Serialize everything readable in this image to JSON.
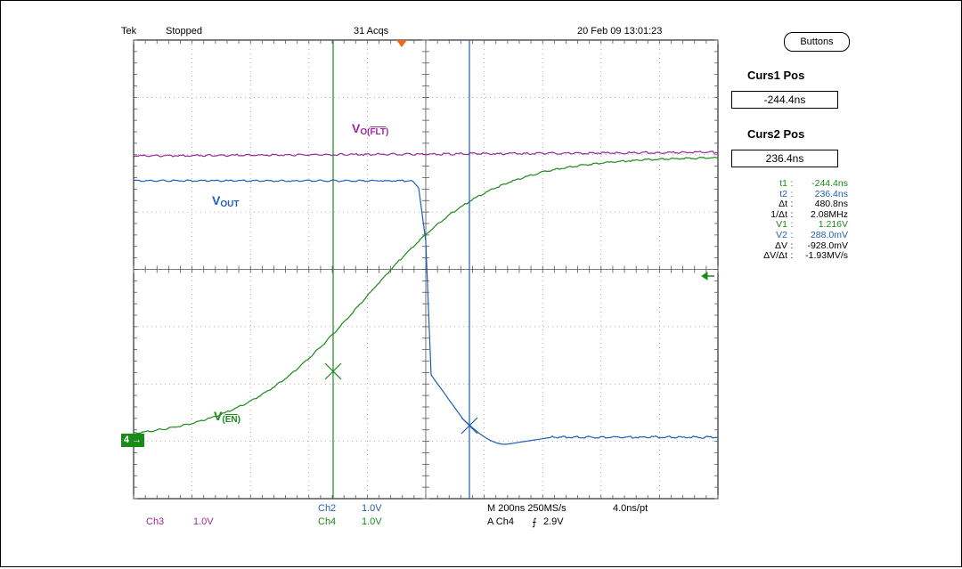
{
  "header": {
    "brand": "Tek",
    "state": "Stopped",
    "acqs": "31 Acqs",
    "datetime": "20 Feb 09 13:01:23"
  },
  "buttons_label": "Buttons",
  "cursors": {
    "curs1_title": "Curs1 Pos",
    "curs1_value": "-244.4ns",
    "curs2_title": "Curs2 Pos",
    "curs2_value": "236.4ns"
  },
  "readouts": [
    {
      "label": "t1",
      "value": "-244.4ns",
      "color": "#1a8a1a"
    },
    {
      "label": "t2",
      "value": "236.4ns",
      "color": "#1f5fb0"
    },
    {
      "label": "Δt",
      "value": "480.8ns",
      "color": "#000000"
    },
    {
      "label": "1/Δt",
      "value": "2.08MHz",
      "color": "#000000"
    },
    {
      "label": "V1",
      "value": "1.216V",
      "color": "#1a8a1a"
    },
    {
      "label": "V2",
      "value": "288.0mV",
      "color": "#1f5fb0"
    },
    {
      "label": "ΔV",
      "value": "-928.0mV",
      "color": "#000000"
    },
    {
      "label": "ΔV/Δt",
      "value": "-1.93MV/s",
      "color": "#000000"
    }
  ],
  "trace_labels": {
    "vo_main": "V",
    "vo_sub": "O(",
    "vo_bar": "FLT",
    "vo_close": ")",
    "vout_main": "V",
    "vout_sub": "OUT",
    "ven_main": "V",
    "ven_open": "(",
    "ven_bar": "EN",
    "ven_close": ")"
  },
  "channel_marker": "4",
  "footer": {
    "ch3": "Ch3",
    "ch3_scale": "1.0V",
    "ch2": "Ch2",
    "ch2_scale": "1.0V",
    "ch4": "Ch4",
    "ch4_scale": "1.0V",
    "timebase": "M 200ns 250MS/s",
    "pts": "4.0ns/pt",
    "trigger_src": "A  Ch4",
    "trigger_slope": "⨍",
    "trigger_level": "2.9V"
  },
  "colors": {
    "ch2": "#1f5fb0",
    "ch3": "#9a2a9a",
    "ch4": "#1a8a1a",
    "grid": "#9a9a9a",
    "trigger_marker": "#e86a1a"
  }
}
